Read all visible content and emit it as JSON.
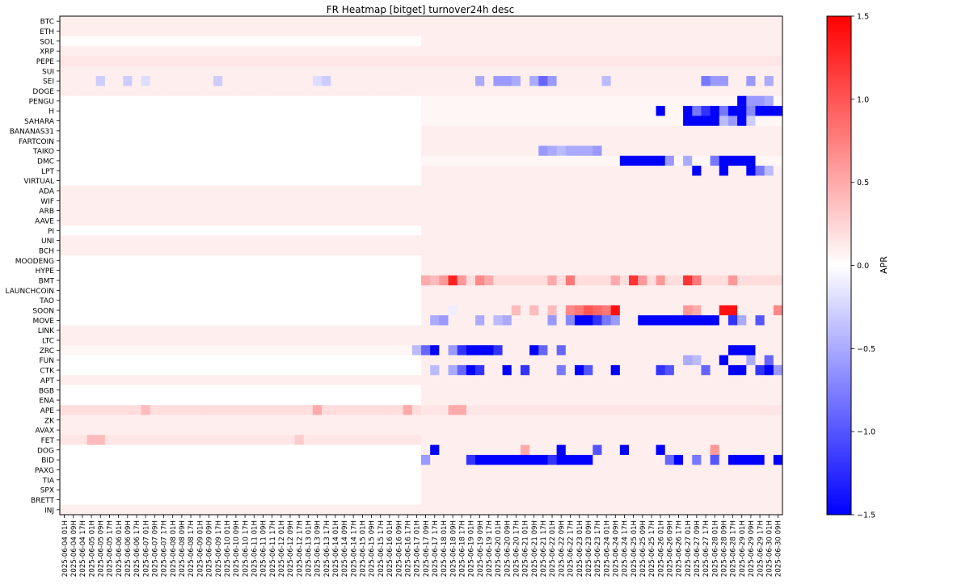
{
  "chart_data": {
    "type": "heatmap",
    "title": "FR Heatmap [bitget] turnover24h desc",
    "colorbar_label": "APR",
    "colormap": "bwr",
    "vmin": -1.5,
    "vmax": 1.5,
    "colorbar_ticks": [
      "1.5",
      "1.0",
      "0.5",
      "0.0",
      "−0.5",
      "−1.0",
      "−1.5"
    ],
    "colorbar_tick_values": [
      1.5,
      1.0,
      0.5,
      0.0,
      -0.5,
      -1.0,
      -1.5
    ],
    "rows": [
      "BTC",
      "ETH",
      "SOL",
      "XRP",
      "PEPE",
      "SUI",
      "SEI",
      "DOGE",
      "PENGU",
      "H",
      "SAHARA",
      "BANANAS31",
      "FARTCOIN",
      "TAIKO",
      "DMC",
      "LPT",
      "VIRTUAL",
      "ADA",
      "WIF",
      "ARB",
      "AAVE",
      "PI",
      "UNI",
      "BCH",
      "MOODENG",
      "HYPE",
      "BMT",
      "LAUNCHCOIN",
      "TAO",
      "SOON",
      "MOVE",
      "LINK",
      "LTC",
      "ZRC",
      "FUN",
      "CTK",
      "APT",
      "BGB",
      "ENA",
      "APE",
      "ZK",
      "AVAX",
      "FET",
      "DOG",
      "BID",
      "PAXG",
      "TIA",
      "SPX",
      "BRETT",
      "INJ"
    ],
    "columns": [
      "2025-06-04 01H",
      "2025-06-04 09H",
      "2025-06-04 17H",
      "2025-06-05 01H",
      "2025-06-05 09H",
      "2025-06-05 17H",
      "2025-06-06 01H",
      "2025-06-06 09H",
      "2025-06-06 17H",
      "2025-06-07 01H",
      "2025-06-07 09H",
      "2025-06-07 17H",
      "2025-06-08 01H",
      "2025-06-08 09H",
      "2025-06-08 17H",
      "2025-06-09 01H",
      "2025-06-09 09H",
      "2025-06-09 17H",
      "2025-06-10 01H",
      "2025-06-10 09H",
      "2025-06-10 17H",
      "2025-06-11 01H",
      "2025-06-11 09H",
      "2025-06-11 17H",
      "2025-06-12 01H",
      "2025-06-12 09H",
      "2025-06-12 17H",
      "2025-06-13 01H",
      "2025-06-13 09H",
      "2025-06-13 17H",
      "2025-06-14 01H",
      "2025-06-14 09H",
      "2025-06-14 17H",
      "2025-06-15 01H",
      "2025-06-15 09H",
      "2025-06-15 17H",
      "2025-06-16 01H",
      "2025-06-16 09H",
      "2025-06-16 17H",
      "2025-06-17 01H",
      "2025-06-17 09H",
      "2025-06-17 17H",
      "2025-06-18 01H",
      "2025-06-18 09H",
      "2025-06-18 17H",
      "2025-06-19 01H",
      "2025-06-19 09H",
      "2025-06-19 17H",
      "2025-06-20 01H",
      "2025-06-20 09H",
      "2025-06-20 17H",
      "2025-06-21 01H",
      "2025-06-21 09H",
      "2025-06-21 17H",
      "2025-06-22 01H",
      "2025-06-22 09H",
      "2025-06-22 17H",
      "2025-06-23 01H",
      "2025-06-23 09H",
      "2025-06-23 17H",
      "2025-06-24 01H",
      "2025-06-24 09H",
      "2025-06-24 17H",
      "2025-06-25 01H",
      "2025-06-25 09H",
      "2025-06-25 17H",
      "2025-06-26 01H",
      "2025-06-26 09H",
      "2025-06-26 17H",
      "2025-06-27 01H",
      "2025-06-27 09H",
      "2025-06-27 17H",
      "2025-06-28 01H",
      "2025-06-28 09H",
      "2025-06-28 17H",
      "2025-06-29 01H",
      "2025-06-29 09H",
      "2025-06-29 17H",
      "2025-06-30 01H",
      "2025-06-30 09H"
    ],
    "row_defaults_after_2025_06_17": {
      "BTC": 0.1,
      "ETH": 0.1,
      "SOL": 0.1,
      "XRP": 0.1,
      "PEPE": 0.15,
      "SUI": 0.1,
      "SEI": 0.1,
      "DOGE": 0.1,
      "PENGU": 0.05,
      "H": 0.05,
      "SAHARA": 0.05,
      "BANANAS31": 0.1,
      "FARTCOIN": 0.1,
      "TAIKO": 0.1,
      "DMC": 0.05,
      "LPT": 0.1,
      "VIRTUAL": 0.1,
      "ADA": 0.1,
      "WIF": 0.1,
      "ARB": 0.1,
      "AAVE": 0.1,
      "PI": 0.1,
      "UNI": 0.1,
      "BCH": 0.1,
      "MOODENG": 0.1,
      "HYPE": 0.1,
      "BMT": 0.2,
      "LAUNCHCOIN": 0.1,
      "TAO": 0.1,
      "SOON": 0.1,
      "MOVE": 0.1,
      "LINK": 0.1,
      "LTC": 0.1,
      "ZRC": 0.1,
      "FUN": 0.1,
      "CTK": 0.1,
      "APT": 0.1,
      "BGB": 0.1,
      "ENA": 0.1,
      "APE": 0.15,
      "ZK": 0.1,
      "AVAX": 0.1,
      "FET": 0.1,
      "DOG": 0.1,
      "BID": 0.1,
      "PAXG": 0.1,
      "TIA": 0.1,
      "SPX": 0.1,
      "BRETT": 0.1,
      "INJ": 0.1
    },
    "row_defaults_before_2025_06_17": {
      "BTC": 0.1,
      "ETH": 0.1,
      "SOL": 0.02,
      "XRP": 0.1,
      "PEPE": 0.15,
      "SUI": 0.1,
      "SEI": 0.1,
      "DOGE": 0.1,
      "ADA": 0.1,
      "WIF": 0.1,
      "ARB": 0.1,
      "AAVE": 0.1,
      "UNI": 0.1,
      "BCH": 0.1,
      "LINK": 0.1,
      "LTC": 0.1,
      "ZRC": 0.05,
      "APT": 0.1,
      "APE": 0.2,
      "ZK": 0.1,
      "AVAX": 0.1,
      "FET": 0.15,
      "INJ": 0.1
    },
    "values_sparse": [
      [
        "SEI",
        "2025-06-05 09H",
        -0.3
      ],
      [
        "SEI",
        "2025-06-06 09H",
        -0.3
      ],
      [
        "SEI",
        "2025-06-07 01H",
        -0.2
      ],
      [
        "SEI",
        "2025-06-09 17H",
        -0.3
      ],
      [
        "SEI",
        "2025-06-13 09H",
        -0.2
      ],
      [
        "SEI",
        "2025-06-13 17H",
        -0.3
      ],
      [
        "SEI",
        "2025-06-19 09H",
        -0.5
      ],
      [
        "SEI",
        "2025-06-20 01H",
        -0.6
      ],
      [
        "SEI",
        "2025-06-20 09H",
        -0.6
      ],
      [
        "SEI",
        "2025-06-20 17H",
        -0.5
      ],
      [
        "SEI",
        "2025-06-21 09H",
        -0.5
      ],
      [
        "SEI",
        "2025-06-21 17H",
        -0.9
      ],
      [
        "SEI",
        "2025-06-22 01H",
        -0.6
      ],
      [
        "SEI",
        "2025-06-24 01H",
        -0.4
      ],
      [
        "SEI",
        "2025-06-27 17H",
        -0.8
      ],
      [
        "SEI",
        "2025-06-28 01H",
        -0.6
      ],
      [
        "SEI",
        "2025-06-28 09H",
        -0.6
      ],
      [
        "SEI",
        "2025-06-29 09H",
        -0.6
      ],
      [
        "SEI",
        "2025-06-30 01H",
        -0.5
      ],
      [
        "PENGU",
        "2025-06-29 01H",
        -1.5
      ],
      [
        "PENGU",
        "2025-06-29 09H",
        -0.6
      ],
      [
        "PENGU",
        "2025-06-29 17H",
        -0.6
      ],
      [
        "PENGU",
        "2025-06-30 01H",
        -0.5
      ],
      [
        "H",
        "2025-06-26 01H",
        -1.5
      ],
      [
        "H",
        "2025-06-27 01H",
        -1.5
      ],
      [
        "H",
        "2025-06-27 09H",
        -0.8
      ],
      [
        "H",
        "2025-06-27 17H",
        -1.2
      ],
      [
        "H",
        "2025-06-28 01H",
        -1.5
      ],
      [
        "H",
        "2025-06-28 09H",
        -0.8
      ],
      [
        "H",
        "2025-06-28 17H",
        -1.5
      ],
      [
        "H",
        "2025-06-29 01H",
        -1.5
      ],
      [
        "H",
        "2025-06-29 09H",
        -0.7
      ],
      [
        "H",
        "2025-06-29 17H",
        -1.5
      ],
      [
        "H",
        "2025-06-30 01H",
        -1.5
      ],
      [
        "H",
        "2025-06-30 09H",
        -1.5
      ],
      [
        "SAHARA",
        "2025-06-27 01H",
        -1.5
      ],
      [
        "SAHARA",
        "2025-06-27 09H",
        -1.5
      ],
      [
        "SAHARA",
        "2025-06-27 17H",
        -1.5
      ],
      [
        "SAHARA",
        "2025-06-28 01H",
        -1.5
      ],
      [
        "SAHARA",
        "2025-06-28 09H",
        -0.4
      ],
      [
        "SAHARA",
        "2025-06-28 17H",
        -0.6
      ],
      [
        "SAHARA",
        "2025-06-29 01H",
        -1.5
      ],
      [
        "SAHARA",
        "2025-06-29 09H",
        -0.3
      ],
      [
        "TAIKO",
        "2025-06-21 17H",
        -0.6
      ],
      [
        "TAIKO",
        "2025-06-22 01H",
        -0.5
      ],
      [
        "TAIKO",
        "2025-06-22 09H",
        -0.4
      ],
      [
        "TAIKO",
        "2025-06-22 17H",
        -0.5
      ],
      [
        "TAIKO",
        "2025-06-23 01H",
        -0.5
      ],
      [
        "TAIKO",
        "2025-06-23 09H",
        -0.5
      ],
      [
        "TAIKO",
        "2025-06-23 17H",
        -0.6
      ],
      [
        "DMC",
        "2025-06-24 17H",
        -1.5
      ],
      [
        "DMC",
        "2025-06-25 01H",
        -1.5
      ],
      [
        "DMC",
        "2025-06-25 09H",
        -1.5
      ],
      [
        "DMC",
        "2025-06-25 17H",
        -1.5
      ],
      [
        "DMC",
        "2025-06-26 01H",
        -1.5
      ],
      [
        "DMC",
        "2025-06-26 09H",
        -0.6
      ],
      [
        "DMC",
        "2025-06-27 01H",
        -0.5
      ],
      [
        "DMC",
        "2025-06-28 01H",
        -0.8
      ],
      [
        "DMC",
        "2025-06-28 09H",
        -1.5
      ],
      [
        "DMC",
        "2025-06-28 17H",
        -1.5
      ],
      [
        "DMC",
        "2025-06-29 01H",
        -1.5
      ],
      [
        "DMC",
        "2025-06-29 09H",
        -1.5
      ],
      [
        "LPT",
        "2025-06-27 09H",
        -1.5
      ],
      [
        "LPT",
        "2025-06-28 09H",
        -1.5
      ],
      [
        "LPT",
        "2025-06-29 09H",
        -1.5
      ],
      [
        "LPT",
        "2025-06-29 17H",
        -0.8
      ],
      [
        "LPT",
        "2025-06-30 01H",
        -0.4
      ],
      [
        "BMT",
        "2025-06-17 09H",
        0.5
      ],
      [
        "BMT",
        "2025-06-17 17H",
        0.4
      ],
      [
        "BMT",
        "2025-06-18 01H",
        0.6
      ],
      [
        "BMT",
        "2025-06-18 09H",
        1.3
      ],
      [
        "BMT",
        "2025-06-18 17H",
        0.6
      ],
      [
        "BMT",
        "2025-06-19 09H",
        0.7
      ],
      [
        "BMT",
        "2025-06-19 17H",
        0.5
      ],
      [
        "BMT",
        "2025-06-22 01H",
        0.5
      ],
      [
        "BMT",
        "2025-06-22 17H",
        0.8
      ],
      [
        "BMT",
        "2025-06-24 09H",
        0.5
      ],
      [
        "BMT",
        "2025-06-25 01H",
        1.2
      ],
      [
        "BMT",
        "2025-06-25 09H",
        0.6
      ],
      [
        "BMT",
        "2025-06-26 01H",
        0.6
      ],
      [
        "BMT",
        "2025-06-27 01H",
        1.2
      ],
      [
        "BMT",
        "2025-06-27 09H",
        0.8
      ],
      [
        "BMT",
        "2025-06-28 17H",
        0.6
      ],
      [
        "SOON",
        "2025-06-18 09H",
        -0.1
      ],
      [
        "SOON",
        "2025-06-20 17H",
        0.4
      ],
      [
        "SOON",
        "2025-06-21 09H",
        0.4
      ],
      [
        "SOON",
        "2025-06-22 01H",
        0.4
      ],
      [
        "SOON",
        "2025-06-22 17H",
        0.7
      ],
      [
        "SOON",
        "2025-06-23 01H",
        0.8
      ],
      [
        "SOON",
        "2025-06-23 09H",
        1.0
      ],
      [
        "SOON",
        "2025-06-23 17H",
        0.9
      ],
      [
        "SOON",
        "2025-06-24 01H",
        0.8
      ],
      [
        "SOON",
        "2025-06-24 09H",
        1.4
      ],
      [
        "SOON",
        "2025-06-27 01H",
        0.6
      ],
      [
        "SOON",
        "2025-06-27 09H",
        0.5
      ],
      [
        "SOON",
        "2025-06-28 09H",
        1.4
      ],
      [
        "SOON",
        "2025-06-28 17H",
        1.4
      ],
      [
        "SOON",
        "2025-06-30 09H",
        0.7
      ],
      [
        "MOVE",
        "2025-06-17 17H",
        -0.5
      ],
      [
        "MOVE",
        "2025-06-18 01H",
        -0.6
      ],
      [
        "MOVE",
        "2025-06-19 09H",
        -0.5
      ],
      [
        "MOVE",
        "2025-06-20 01H",
        -0.4
      ],
      [
        "MOVE",
        "2025-06-20 09H",
        -0.5
      ],
      [
        "MOVE",
        "2025-06-22 01H",
        -0.6
      ],
      [
        "MOVE",
        "2025-06-22 17H",
        -0.7
      ],
      [
        "MOVE",
        "2025-06-23 01H",
        -1.5
      ],
      [
        "MOVE",
        "2025-06-23 09H",
        -1.5
      ],
      [
        "MOVE",
        "2025-06-23 17H",
        -1.2
      ],
      [
        "MOVE",
        "2025-06-24 01H",
        -0.8
      ],
      [
        "MOVE",
        "2025-06-24 09H",
        -0.6
      ],
      [
        "MOVE",
        "2025-06-25 09H",
        -1.5
      ],
      [
        "MOVE",
        "2025-06-25 17H",
        -1.5
      ],
      [
        "MOVE",
        "2025-06-26 01H",
        -1.5
      ],
      [
        "MOVE",
        "2025-06-26 09H",
        -1.5
      ],
      [
        "MOVE",
        "2025-06-26 17H",
        -1.5
      ],
      [
        "MOVE",
        "2025-06-27 01H",
        -1.5
      ],
      [
        "MOVE",
        "2025-06-27 09H",
        -1.5
      ],
      [
        "MOVE",
        "2025-06-27 17H",
        -1.5
      ],
      [
        "MOVE",
        "2025-06-28 01H",
        -1.5
      ],
      [
        "MOVE",
        "2025-06-28 17H",
        -1.2
      ],
      [
        "MOVE",
        "2025-06-29 01H",
        -0.5
      ],
      [
        "MOVE",
        "2025-06-29 17H",
        -1.0
      ],
      [
        "ZRC",
        "2025-06-17 01H",
        -0.4
      ],
      [
        "ZRC",
        "2025-06-17 09H",
        -0.9
      ],
      [
        "ZRC",
        "2025-06-17 17H",
        -1.5
      ],
      [
        "ZRC",
        "2025-06-18 09H",
        -0.6
      ],
      [
        "ZRC",
        "2025-06-18 17H",
        -1.2
      ],
      [
        "ZRC",
        "2025-06-19 01H",
        -1.5
      ],
      [
        "ZRC",
        "2025-06-19 09H",
        -1.5
      ],
      [
        "ZRC",
        "2025-06-19 17H",
        -1.5
      ],
      [
        "ZRC",
        "2025-06-20 01H",
        -1.2
      ],
      [
        "ZRC",
        "2025-06-21 09H",
        -1.5
      ],
      [
        "ZRC",
        "2025-06-21 17H",
        -0.9
      ],
      [
        "ZRC",
        "2025-06-22 09H",
        -0.9
      ],
      [
        "ZRC",
        "2025-06-28 17H",
        -1.5
      ],
      [
        "ZRC",
        "2025-06-29 01H",
        -1.5
      ],
      [
        "ZRC",
        "2025-06-29 09H",
        -1.5
      ],
      [
        "FUN",
        "2025-06-27 01H",
        -0.5
      ],
      [
        "FUN",
        "2025-06-27 09H",
        -0.4
      ],
      [
        "FUN",
        "2025-06-28 09H",
        -1.5
      ],
      [
        "FUN",
        "2025-06-29 09H",
        -0.5
      ],
      [
        "FUN",
        "2025-06-30 01H",
        -0.9
      ],
      [
        "CTK",
        "2025-06-17 17H",
        -0.4
      ],
      [
        "CTK",
        "2025-06-18 09H",
        -0.5
      ],
      [
        "CTK",
        "2025-06-18 17H",
        -0.9
      ],
      [
        "CTK",
        "2025-06-19 01H",
        -1.5
      ],
      [
        "CTK",
        "2025-06-19 09H",
        -1.2
      ],
      [
        "CTK",
        "2025-06-20 09H",
        -1.5
      ],
      [
        "CTK",
        "2025-06-21 01H",
        -1.2
      ],
      [
        "CTK",
        "2025-06-22 09H",
        -0.8
      ],
      [
        "CTK",
        "2025-06-23 01H",
        -1.5
      ],
      [
        "CTK",
        "2025-06-23 09H",
        -1.0
      ],
      [
        "CTK",
        "2025-06-24 09H",
        -1.5
      ],
      [
        "CTK",
        "2025-06-26 01H",
        -1.2
      ],
      [
        "CTK",
        "2025-06-26 09H",
        -1.0
      ],
      [
        "CTK",
        "2025-06-27 17H",
        -0.9
      ],
      [
        "CTK",
        "2025-06-28 17H",
        -1.5
      ],
      [
        "CTK",
        "2025-06-29 01H",
        -1.5
      ],
      [
        "CTK",
        "2025-06-29 17H",
        -1.2
      ],
      [
        "CTK",
        "2025-06-30 01H",
        -1.5
      ],
      [
        "CTK",
        "2025-06-30 09H",
        -0.6
      ],
      [
        "APE",
        "2025-06-07 01H",
        0.4
      ],
      [
        "APE",
        "2025-06-13 09H",
        0.5
      ],
      [
        "APE",
        "2025-06-16 17H",
        0.5
      ],
      [
        "APE",
        "2025-06-18 09H",
        0.5
      ],
      [
        "APE",
        "2025-06-18 17H",
        0.5
      ],
      [
        "FET",
        "2025-06-05 01H",
        0.4
      ],
      [
        "FET",
        "2025-06-05 09H",
        0.4
      ],
      [
        "FET",
        "2025-06-12 17H",
        0.3
      ],
      [
        "DOG",
        "2025-06-17 17H",
        -1.5
      ],
      [
        "DOG",
        "2025-06-21 01H",
        0.5
      ],
      [
        "DOG",
        "2025-06-22 09H",
        -1.5
      ],
      [
        "DOG",
        "2025-06-23 17H",
        -1.0
      ],
      [
        "DOG",
        "2025-06-24 17H",
        -1.5
      ],
      [
        "DOG",
        "2025-06-26 01H",
        -1.5
      ],
      [
        "DOG",
        "2025-06-28 01H",
        0.6
      ],
      [
        "BID",
        "2025-06-17 09H",
        -0.6
      ],
      [
        "BID",
        "2025-06-19 01H",
        -1.2
      ],
      [
        "BID",
        "2025-06-19 09H",
        -1.5
      ],
      [
        "BID",
        "2025-06-19 17H",
        -1.5
      ],
      [
        "BID",
        "2025-06-20 01H",
        -1.5
      ],
      [
        "BID",
        "2025-06-20 09H",
        -1.5
      ],
      [
        "BID",
        "2025-06-20 17H",
        -1.5
      ],
      [
        "BID",
        "2025-06-21 01H",
        -1.5
      ],
      [
        "BID",
        "2025-06-21 09H",
        -1.5
      ],
      [
        "BID",
        "2025-06-21 17H",
        -1.5
      ],
      [
        "BID",
        "2025-06-22 01H",
        -1.2
      ],
      [
        "BID",
        "2025-06-22 09H",
        -1.5
      ],
      [
        "BID",
        "2025-06-22 17H",
        -1.5
      ],
      [
        "BID",
        "2025-06-23 01H",
        -1.5
      ],
      [
        "BID",
        "2025-06-23 09H",
        -1.5
      ],
      [
        "BID",
        "2025-06-26 09H",
        -0.9
      ],
      [
        "BID",
        "2025-06-26 17H",
        -1.5
      ],
      [
        "BID",
        "2025-06-27 09H",
        -0.8
      ],
      [
        "BID",
        "2025-06-28 01H",
        -1.0
      ],
      [
        "BID",
        "2025-06-28 17H",
        -1.5
      ],
      [
        "BID",
        "2025-06-29 01H",
        -1.5
      ],
      [
        "BID",
        "2025-06-29 09H",
        -1.5
      ],
      [
        "BID",
        "2025-06-29 17H",
        -1.5
      ],
      [
        "BID",
        "2025-06-30 09H",
        -1.5
      ]
    ]
  }
}
